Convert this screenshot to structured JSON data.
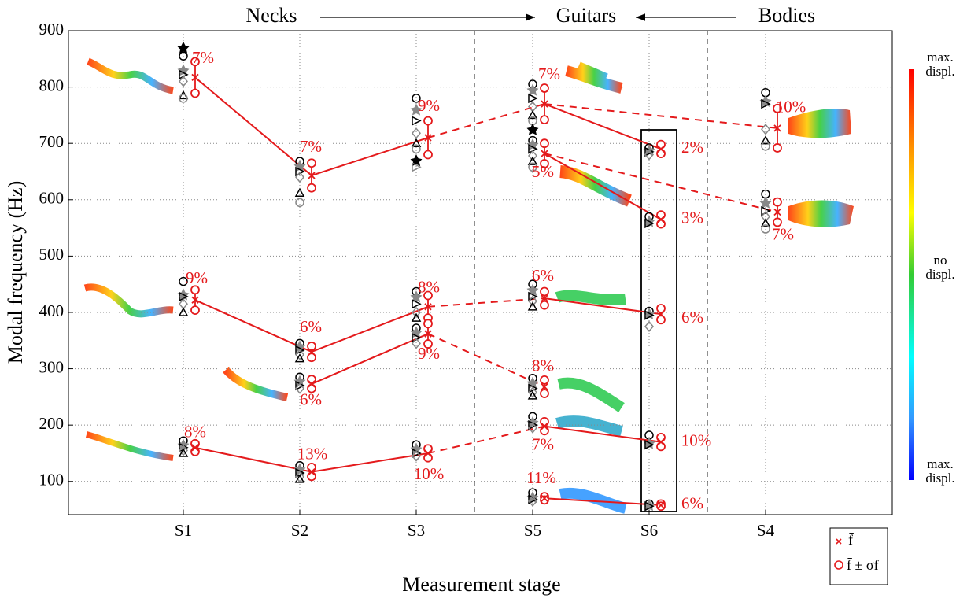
{
  "chart_data": {
    "type": "modal-scatter",
    "xlabel": "Measurement stage",
    "ylabel": "Modal frequency (Hz)",
    "categories": [
      "S1",
      "S2",
      "S3",
      "S5",
      "S6",
      "S4"
    ],
    "ylim": [
      41,
      900
    ],
    "yticks": [
      100,
      200,
      300,
      400,
      500,
      600,
      700,
      800,
      900
    ],
    "grid": true,
    "header": [
      "Necks",
      "Guitars",
      "Bodies"
    ],
    "mean_color": "#e41a1c",
    "legend": [
      "f̄",
      "f̄ ± σf"
    ],
    "colorbar_labels": [
      [
        "max.",
        "displ."
      ],
      [
        "no",
        "displ."
      ],
      [
        "max.",
        "displ."
      ]
    ],
    "points": [
      {
        "stage": "S1",
        "mean": 817,
        "sigma": 28,
        "spread": 7,
        "spread_label": "7%",
        "samples": [
          855,
          830,
          822,
          810,
          785,
          780,
          870
        ]
      },
      {
        "stage": "S1",
        "mean": 422,
        "sigma": 18,
        "spread": 9,
        "spread_label": "9%",
        "samples": [
          455,
          432,
          428,
          415,
          400
        ]
      },
      {
        "stage": "S1",
        "mean": 160,
        "sigma": 7,
        "spread": 8,
        "spread_label": "8%",
        "samples": [
          172,
          165,
          160,
          155,
          150
        ]
      },
      {
        "stage": "S2",
        "mean": 643,
        "sigma": 22,
        "spread": 7,
        "spread_label": "7%",
        "samples": [
          668,
          660,
          650,
          640,
          612,
          595
        ]
      },
      {
        "stage": "S2",
        "mean": 330,
        "sigma": 10,
        "spread": 6,
        "spread_label": "6%",
        "samples": [
          345,
          340,
          333,
          325,
          318
        ]
      },
      {
        "stage": "S2",
        "mean": 273,
        "sigma": 8,
        "spread": 6,
        "spread_label": "6%",
        "samples": [
          285,
          278,
          270,
          265
        ]
      },
      {
        "stage": "S2",
        "mean": 117,
        "sigma": 8,
        "spread": 13,
        "spread_label": "13%",
        "samples": [
          128,
          122,
          115,
          108,
          104
        ]
      },
      {
        "stage": "S3",
        "mean": 710,
        "sigma": 30,
        "spread": 9,
        "spread_label": "9%",
        "samples": [
          780,
          760,
          740,
          718,
          700,
          690,
          670,
          658
        ]
      },
      {
        "stage": "S3",
        "mean": 410,
        "sigma": 20,
        "spread": 8,
        "spread_label": "8%",
        "samples": [
          437,
          428,
          415,
          400,
          390
        ]
      },
      {
        "stage": "S3",
        "mean": 362,
        "sigma": 18,
        "spread": 9,
        "spread_label": "9%",
        "samples": [
          372,
          365,
          355,
          345
        ]
      },
      {
        "stage": "S3",
        "mean": 150,
        "sigma": 8,
        "spread": 10,
        "spread_label": "10%",
        "samples": [
          165,
          158,
          150,
          145
        ]
      },
      {
        "stage": "S5",
        "mean": 770,
        "sigma": 28,
        "spread": 7,
        "spread_label": "7%",
        "samples": [
          805,
          795,
          780,
          765,
          750,
          740,
          725
        ]
      },
      {
        "stage": "S5",
        "mean": 682,
        "sigma": 18,
        "spread": 5,
        "spread_label": "5%",
        "samples": [
          705,
          698,
          690,
          678,
          668,
          658
        ]
      },
      {
        "stage": "S5",
        "mean": 425,
        "sigma": 12,
        "spread": 6,
        "spread_label": "6%",
        "samples": [
          450,
          440,
          428,
          420,
          410
        ]
      },
      {
        "stage": "S5",
        "mean": 268,
        "sigma": 12,
        "spread": 8,
        "spread_label": "8%",
        "samples": [
          283,
          275,
          265,
          258,
          252
        ]
      },
      {
        "stage": "S5",
        "mean": 198,
        "sigma": 8,
        "spread": 7,
        "spread_label": "7%",
        "samples": [
          215,
          205,
          200,
          195
        ]
      },
      {
        "stage": "S5",
        "mean": 70,
        "sigma": 3,
        "spread": 11,
        "spread_label": "11%",
        "samples": [
          80,
          72,
          68,
          65
        ]
      },
      {
        "stage": "S6",
        "mean": 690,
        "sigma": 8,
        "spread": 2,
        "spread_label": "2%",
        "samples": [
          692,
          688,
          685,
          680
        ]
      },
      {
        "stage": "S6",
        "mean": 565,
        "sigma": 8,
        "spread": 3,
        "spread_label": "3%",
        "samples": [
          570,
          562,
          558
        ]
      },
      {
        "stage": "S6",
        "mean": 397,
        "sigma": 10,
        "spread": 6,
        "spread_label": "6%",
        "samples": [
          402,
          398,
          395,
          375
        ]
      },
      {
        "stage": "S6",
        "mean": 170,
        "sigma": 8,
        "spread": 10,
        "spread_label": "10%",
        "samples": [
          182,
          168,
          165
        ]
      },
      {
        "stage": "S6",
        "mean": 58,
        "sigma": 2,
        "spread": 6,
        "spread_label": "6%",
        "samples": [
          60,
          58,
          56
        ]
      },
      {
        "stage": "S4",
        "mean": 727,
        "sigma": 35,
        "spread": 10,
        "spread_label": "10%",
        "samples": [
          790,
          775,
          770,
          725,
          705,
          695
        ]
      },
      {
        "stage": "S4",
        "mean": 578,
        "sigma": 18,
        "spread": 7,
        "spread_label": "7%",
        "samples": [
          610,
          595,
          580,
          570,
          558,
          548
        ]
      }
    ],
    "series": [
      {
        "x": [
          "S1",
          "S2",
          "S3"
        ],
        "values": [
          817,
          643,
          710
        ],
        "dashed": false
      },
      {
        "x": [
          "S3",
          "S5"
        ],
        "values": [
          710,
          770
        ],
        "dashed": true
      },
      {
        "x": [
          "S5",
          "S6"
        ],
        "values": [
          770,
          690
        ],
        "dashed": false
      },
      {
        "x": [
          "S5",
          "S4"
        ],
        "values": [
          770,
          727
        ],
        "dashed": true
      },
      {
        "x": [
          "S5",
          "S6"
        ],
        "values": [
          682,
          565
        ],
        "dashed": false
      },
      {
        "x": [
          "S5",
          "S4"
        ],
        "values": [
          682,
          578
        ],
        "dashed": true
      },
      {
        "x": [
          "S1",
          "S2",
          "S3"
        ],
        "values": [
          422,
          330,
          410
        ],
        "dashed": false
      },
      {
        "x": [
          "S3",
          "S5"
        ],
        "values": [
          410,
          425
        ],
        "dashed": true
      },
      {
        "x": [
          "S5",
          "S6"
        ],
        "values": [
          425,
          397
        ],
        "dashed": false
      },
      {
        "x": [
          "S2",
          "S3"
        ],
        "values": [
          273,
          362
        ],
        "dashed": false
      },
      {
        "x": [
          "S3",
          "S5"
        ],
        "values": [
          362,
          268
        ],
        "dashed": true
      },
      {
        "x": [
          "S1",
          "S2",
          "S3"
        ],
        "values": [
          160,
          117,
          150
        ],
        "dashed": false
      },
      {
        "x": [
          "S3",
          "S5"
        ],
        "values": [
          150,
          198
        ],
        "dashed": true
      },
      {
        "x": [
          "S5",
          "S6"
        ],
        "values": [
          198,
          170
        ],
        "dashed": false
      },
      {
        "x": [
          "S5",
          "S6"
        ],
        "values": [
          70,
          58
        ],
        "dashed": false
      }
    ]
  }
}
